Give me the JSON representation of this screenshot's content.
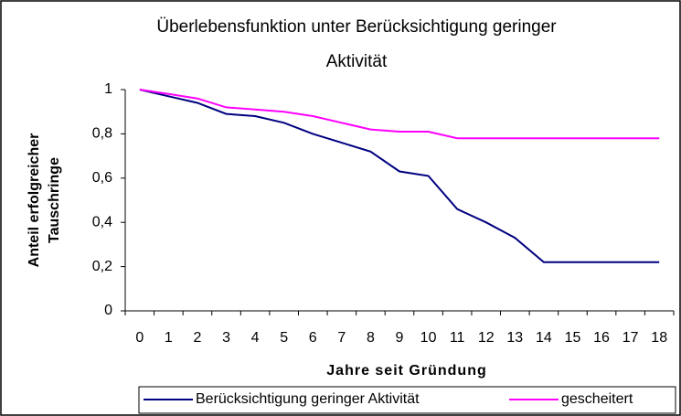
{
  "chart_data": {
    "type": "line",
    "title": "Überlebensfunktion unter Berücksichtigung geringer Aktivität",
    "xlabel": "Jahre seit Gründung",
    "ylabel": "Anteil erfolgreicher Tauschringe",
    "categories": [
      0,
      1,
      2,
      3,
      4,
      5,
      6,
      7,
      8,
      9,
      10,
      11,
      12,
      13,
      14,
      15,
      16,
      17,
      18
    ],
    "series": [
      {
        "name": "Berücksichtigung geringer Aktivität",
        "color": "#000080",
        "values": [
          1,
          0.97,
          0.94,
          0.89,
          0.88,
          0.85,
          0.8,
          0.76,
          0.72,
          0.63,
          0.61,
          0.46,
          0.4,
          0.33,
          0.22,
          0.22,
          0.22,
          0.22,
          0.22
        ]
      },
      {
        "name": "gescheitert",
        "color": "#ff00ff",
        "values": [
          1,
          0.98,
          0.96,
          0.92,
          0.91,
          0.9,
          0.88,
          0.85,
          0.82,
          0.81,
          0.81,
          0.78,
          0.78,
          0.78,
          0.78,
          0.78,
          0.78,
          0.78,
          0.78
        ]
      }
    ],
    "ylim": [
      0,
      1
    ],
    "yticks": [
      0,
      {
        "value": 0.2,
        "label": "0,2"
      },
      {
        "value": 0.4,
        "label": "0,4"
      },
      {
        "value": 0.6,
        "label": "0,6"
      },
      {
        "value": 0.8,
        "label": "0,8"
      },
      1
    ],
    "legend": "bottom"
  }
}
